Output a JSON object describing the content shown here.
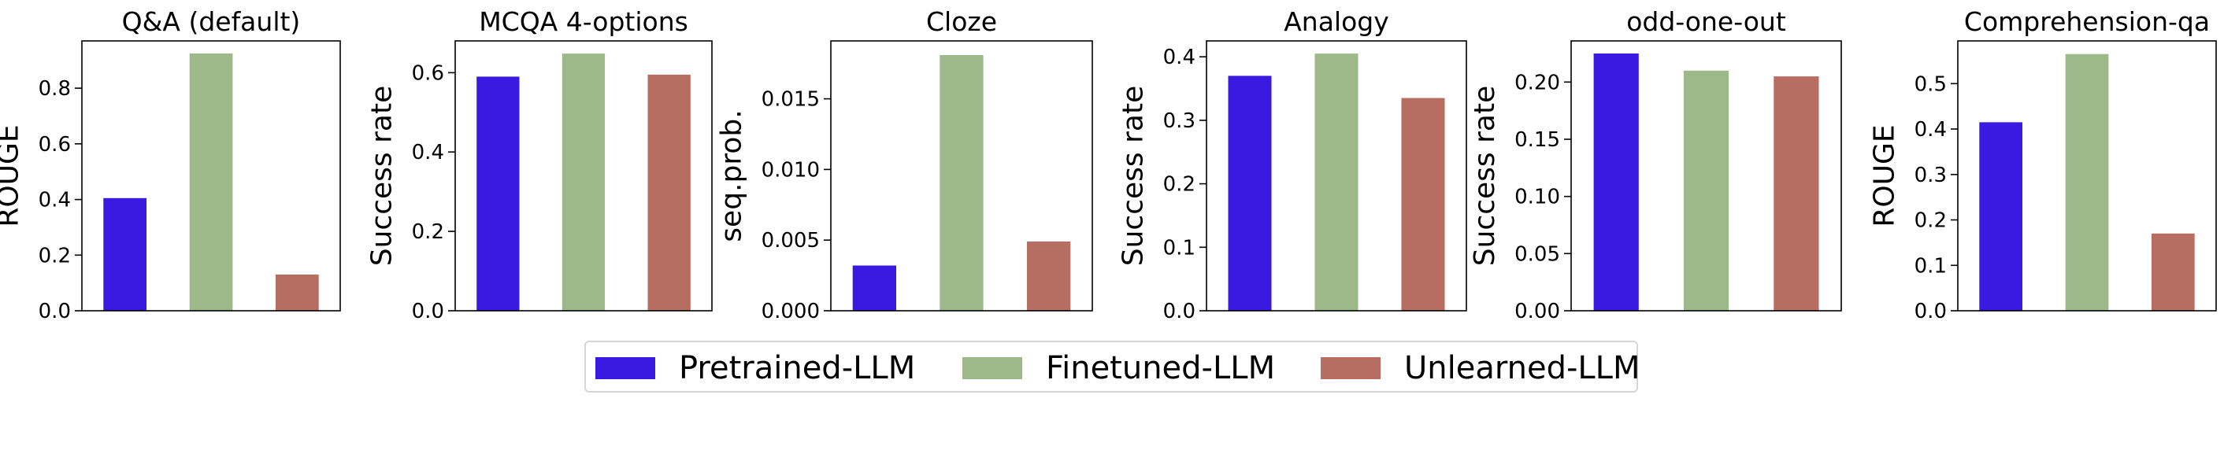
{
  "colors": {
    "pretrained": "#3a1ae0",
    "finetuned": "#9db98a",
    "unlearned": "#b86d62"
  },
  "legend": [
    {
      "label": "Pretrained-LLM",
      "color_key": "pretrained"
    },
    {
      "label": "Finetuned-LLM",
      "color_key": "finetuned"
    },
    {
      "label": "Unlearned-LLM",
      "color_key": "unlearned"
    }
  ],
  "chart_data": [
    {
      "type": "bar",
      "title": "Q&A (default)",
      "ylabel": "ROUGE",
      "series_names": [
        "Pretrained-LLM",
        "Finetuned-LLM",
        "Unlearned-LLM"
      ],
      "values": [
        0.405,
        0.925,
        0.13
      ],
      "ylim": [
        0,
        0.97
      ],
      "yticks": [
        0.0,
        0.2,
        0.4,
        0.6,
        0.8
      ],
      "tick_labels": [
        "0.0",
        "0.2",
        "0.4",
        "0.6",
        "0.8"
      ]
    },
    {
      "type": "bar",
      "title": "MCQA 4-options",
      "ylabel": "Success rate",
      "series_names": [
        "Pretrained-LLM",
        "Finetuned-LLM",
        "Unlearned-LLM"
      ],
      "values": [
        0.59,
        0.648,
        0.595
      ],
      "ylim": [
        0,
        0.68
      ],
      "yticks": [
        0.0,
        0.2,
        0.4,
        0.6
      ],
      "tick_labels": [
        "0.0",
        "0.2",
        "0.4",
        "0.6"
      ]
    },
    {
      "type": "bar",
      "title": "Cloze",
      "ylabel": "seq.prob.",
      "series_names": [
        "Pretrained-LLM",
        "Finetuned-LLM",
        "Unlearned-LLM"
      ],
      "values": [
        0.0032,
        0.0181,
        0.0049
      ],
      "ylim": [
        0,
        0.0191
      ],
      "yticks": [
        0.0,
        0.005,
        0.01,
        0.015
      ],
      "tick_labels": [
        "0.000",
        "0.005",
        "0.010",
        "0.015"
      ]
    },
    {
      "type": "bar",
      "title": "Analogy",
      "ylabel": "Success rate",
      "series_names": [
        "Pretrained-LLM",
        "Finetuned-LLM",
        "Unlearned-LLM"
      ],
      "values": [
        0.37,
        0.405,
        0.335
      ],
      "ylim": [
        0,
        0.425
      ],
      "yticks": [
        0.0,
        0.1,
        0.2,
        0.3,
        0.4
      ],
      "tick_labels": [
        "0.0",
        "0.1",
        "0.2",
        "0.3",
        "0.4"
      ]
    },
    {
      "type": "bar",
      "title": "odd-one-out",
      "ylabel": "Success rate",
      "series_names": [
        "Pretrained-LLM",
        "Finetuned-LLM",
        "Unlearned-LLM"
      ],
      "values": [
        0.225,
        0.21,
        0.205
      ],
      "ylim": [
        0,
        0.236
      ],
      "yticks": [
        0.0,
        0.05,
        0.1,
        0.15,
        0.2
      ],
      "tick_labels": [
        "0.00",
        "0.05",
        "0.10",
        "0.15",
        "0.20"
      ]
    },
    {
      "type": "bar",
      "title": "Comprehension-qa",
      "ylabel": "ROUGE",
      "series_names": [
        "Pretrained-LLM",
        "Finetuned-LLM",
        "Unlearned-LLM"
      ],
      "values": [
        0.415,
        0.565,
        0.17
      ],
      "ylim": [
        0,
        0.594
      ],
      "yticks": [
        0.0,
        0.1,
        0.2,
        0.3,
        0.4,
        0.5
      ],
      "tick_labels": [
        "0.0",
        "0.1",
        "0.2",
        "0.3",
        "0.4",
        "0.5"
      ]
    }
  ]
}
